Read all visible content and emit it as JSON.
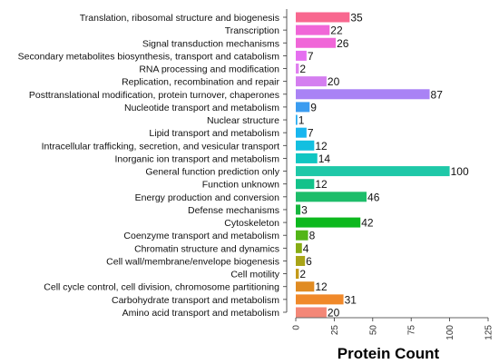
{
  "chart_data": {
    "type": "bar",
    "orientation": "horizontal",
    "xlabel": "Protein Count",
    "xlim": [
      0,
      125
    ],
    "xticks": [
      0,
      25,
      50,
      75,
      100,
      125
    ],
    "grid": false,
    "categories": [
      "Translation, ribosomal structure and biogenesis",
      "Transcription",
      "Signal transduction mechanisms",
      "Secondary metabolites biosynthesis, transport and catabolism",
      "RNA processing and modification",
      "Replication, recombination and repair",
      "Posttranslational modification, protein turnover, chaperones",
      "Nucleotide transport and metabolism",
      "Nuclear structure",
      "Lipid transport and metabolism",
      "Intracellular trafficking, secretion, and vesicular transport",
      "Inorganic ion transport and metabolism",
      "General function prediction only",
      "Function unknown",
      "Energy production and conversion",
      "Defense mechanisms",
      "Cytoskeleton",
      "Coenzyme transport and metabolism",
      "Chromatin structure and dynamics",
      "Cell wall/membrane/envelope biogenesis",
      "Cell motility",
      "Cell cycle control, cell division, chromosome partitioning",
      "Carbohydrate transport and metabolism",
      "Amino acid transport and metabolism"
    ],
    "values": [
      35,
      22,
      26,
      7,
      2,
      20,
      87,
      9,
      1,
      7,
      12,
      14,
      100,
      12,
      46,
      3,
      42,
      8,
      4,
      6,
      2,
      12,
      31,
      20
    ],
    "colors": [
      "#f8678f",
      "#f066d8",
      "#f066d8",
      "#e56ff0",
      "#e080ef",
      "#d47ef0",
      "#a982f5",
      "#3a9cf0",
      "#22a9f0",
      "#18b6ef",
      "#13bfe0",
      "#10c6c2",
      "#1fc8a8",
      "#13c28a",
      "#1dbd6a",
      "#17b63e",
      "#0db81e",
      "#52b517",
      "#86ac14",
      "#a9a418",
      "#c39a1a",
      "#e08b22",
      "#f0892a",
      "#f38777"
    ]
  }
}
